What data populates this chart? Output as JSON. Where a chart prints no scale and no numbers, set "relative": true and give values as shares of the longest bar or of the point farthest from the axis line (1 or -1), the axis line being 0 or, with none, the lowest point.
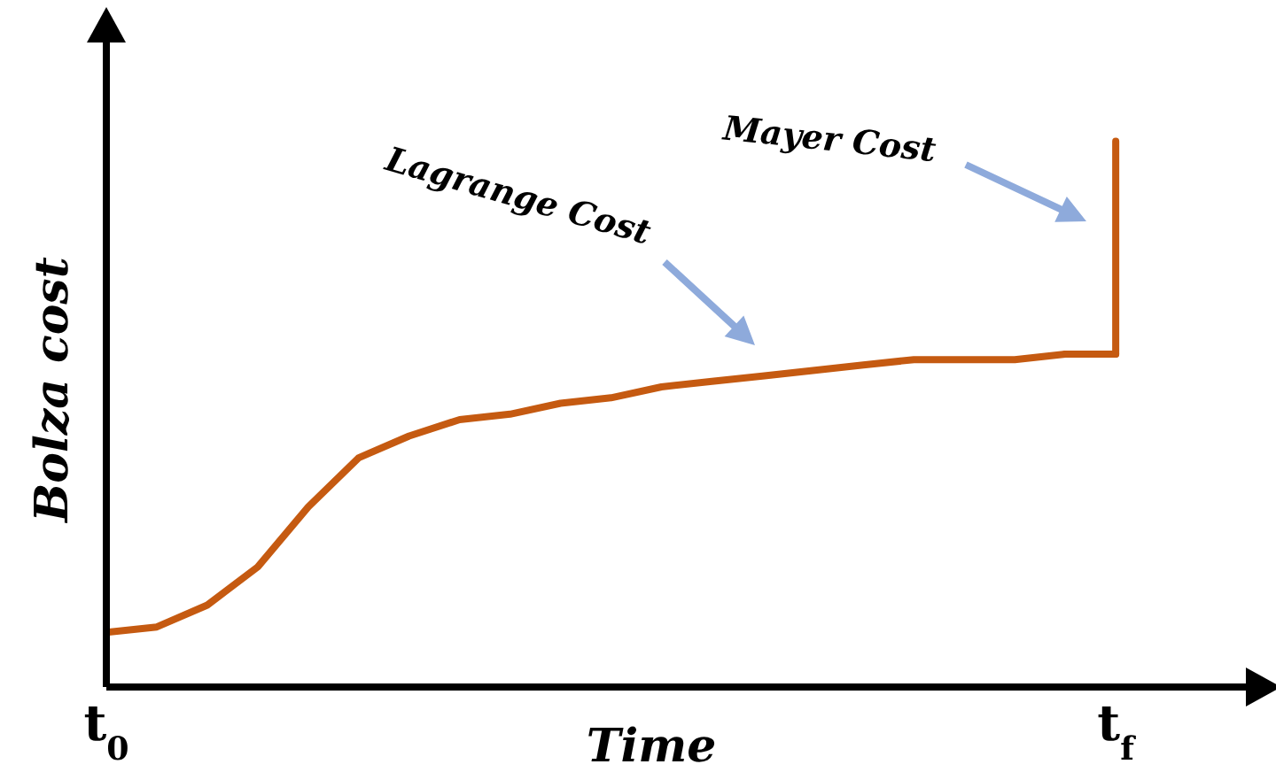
{
  "chart_data": {
    "type": "line",
    "relative": true,
    "xlabel": "Time",
    "ylabel": "Bolza cost",
    "categories": [
      "t$_{0}$",
      null,
      null,
      null,
      null,
      null,
      null,
      null,
      null,
      null,
      null,
      null,
      null,
      null,
      null,
      null,
      null,
      null,
      null,
      null,
      "t$_{f}$",
      null,
      null,
      null
    ],
    "series": [
      {
        "color": "#c55a11",
        "values": [
          0.1,
          0.11,
          0.15,
          0.22,
          0.33,
          0.42,
          0.46,
          0.49,
          0.5,
          0.52,
          0.53,
          0.55,
          0.56,
          0.57,
          0.58,
          0.59,
          0.6,
          0.6,
          0.6,
          0.61,
          0.61,
          null,
          null,
          null
        ]
      },
      {
        "type": "step",
        "color": "#c55a11",
        "values": [
          null,
          null,
          null,
          null,
          null,
          null,
          null,
          null,
          null,
          null,
          null,
          null,
          null,
          null,
          null,
          null,
          null,
          null,
          null,
          0.61,
          1,
          null,
          null,
          null
        ]
      }
    ],
    "annotations": [
      "Lagrange Cost",
      "Mayer Cost"
    ],
    "marker": "none"
  }
}
